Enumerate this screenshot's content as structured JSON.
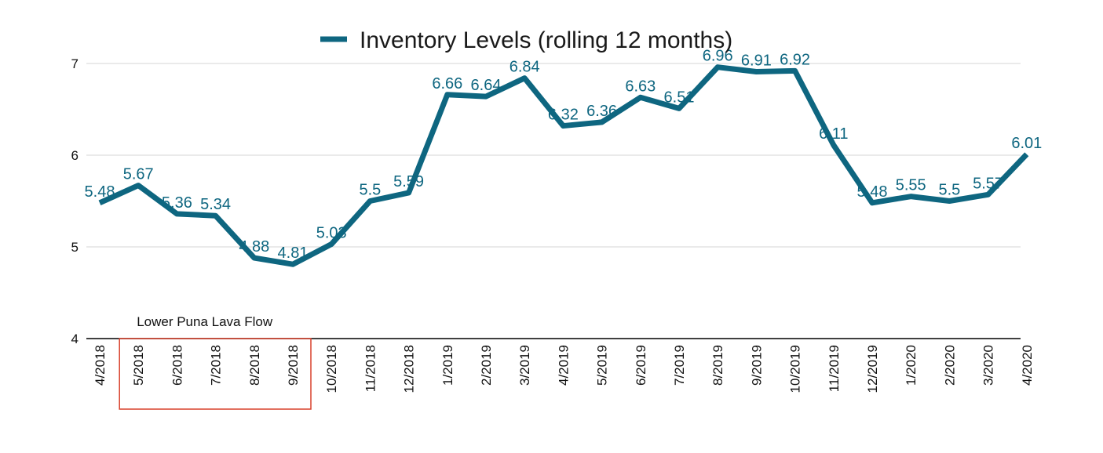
{
  "chart_data": {
    "type": "line",
    "legend": {
      "label": "Inventory Levels (rolling 12 months)",
      "position": "top"
    },
    "categories": [
      "4/2018",
      "5/2018",
      "6/2018",
      "7/2018",
      "8/2018",
      "9/2018",
      "10/2018",
      "11/2018",
      "12/2018",
      "1/2019",
      "2/2019",
      "3/2019",
      "4/2019",
      "5/2019",
      "6/2019",
      "7/2019",
      "8/2019",
      "9/2019",
      "10/2019",
      "11/2019",
      "12/2019",
      "1/2020",
      "2/2020",
      "3/2020",
      "4/2020"
    ],
    "series": [
      {
        "name": "Inventory Levels (rolling 12 months)",
        "values": [
          5.48,
          5.67,
          5.36,
          5.34,
          4.88,
          4.81,
          5.03,
          5.5,
          5.59,
          6.66,
          6.64,
          6.84,
          6.32,
          6.36,
          6.63,
          6.51,
          6.96,
          6.91,
          6.92,
          6.11,
          5.48,
          5.55,
          5.5,
          5.57,
          6.01
        ],
        "data_labels": [
          "5.48",
          "5.67",
          "5.36",
          "5.34",
          "4.88",
          "4.81",
          "5.03",
          "5.5",
          "5.59",
          "6.66",
          "6.64",
          "6.84",
          "6.32",
          "6.36",
          "6.63",
          "6.51",
          "6.96",
          "6.91",
          "6.92",
          "6.11",
          "5.48",
          "5.55",
          "5.5",
          "5.57",
          "6.01"
        ]
      }
    ],
    "ylim": [
      4,
      7
    ],
    "yticks": [
      "4",
      "5",
      "6",
      "7"
    ],
    "grid": "horizontal",
    "annotation": {
      "text": "Lower Puna Lava Flow",
      "from_category": "5/2018",
      "to_category": "9/2018"
    },
    "colors": {
      "line": "#0e6680",
      "label": "#0e6680",
      "annotation_box": "#d9402b",
      "grid": "#d6d6d6",
      "axis": "#000000"
    }
  }
}
